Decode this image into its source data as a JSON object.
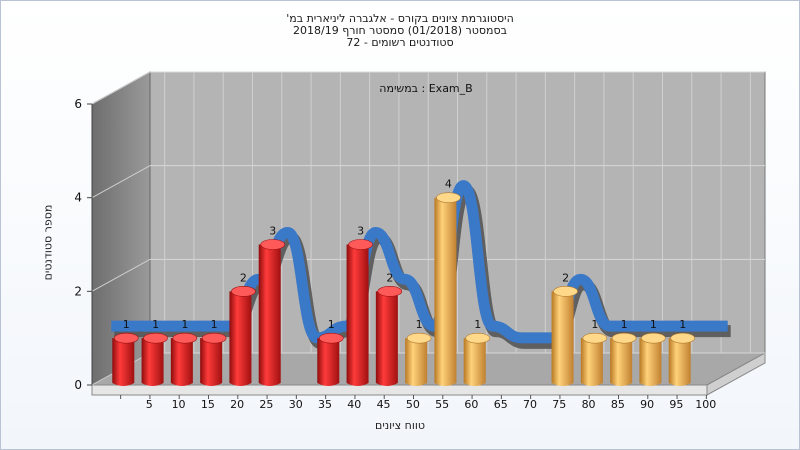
{
  "title": {
    "line1": "היסטוגרמת ציונים בקורס - אלגברה ליניארית במ'",
    "line2": "בסמסטר  (01/2018)  סמסטר חורף 2018/19",
    "line3": "סטודנטים רשומים - 72"
  },
  "chart_data": {
    "type": "bar",
    "annotation": "במשימה : Exam_B",
    "xlabel": "טווח ציונים",
    "ylabel": "מספר סטודנטים",
    "ylim": [
      0,
      6
    ],
    "yticks": [
      0,
      2,
      4,
      6
    ],
    "categories": [
      "5",
      "10",
      "15",
      "20",
      "25",
      "30",
      "35",
      "40",
      "45",
      "50",
      "55",
      "60",
      "65",
      "70",
      "75",
      "80",
      "85",
      "90",
      "95",
      "100"
    ],
    "values": [
      1,
      1,
      1,
      1,
      2,
      3,
      0,
      1,
      3,
      2,
      1,
      4,
      1,
      0,
      0,
      2,
      1,
      1,
      1,
      1
    ],
    "colors": {
      "red": "#d81e1e",
      "orange": "#e8a640",
      "trend": "#3a78c8",
      "trend_shadow": "#555555",
      "wall": "#b4b4b4",
      "side_wall": "#8e8e8e",
      "floor": "#a8a8a8"
    },
    "bar_color_by_category": [
      "red",
      "red",
      "red",
      "red",
      "red",
      "red",
      "red",
      "red",
      "red",
      "red",
      "orange",
      "orange",
      "orange",
      "orange",
      "orange",
      "orange",
      "orange",
      "orange",
      "orange",
      "orange"
    ],
    "grid": true,
    "legend": "none"
  }
}
